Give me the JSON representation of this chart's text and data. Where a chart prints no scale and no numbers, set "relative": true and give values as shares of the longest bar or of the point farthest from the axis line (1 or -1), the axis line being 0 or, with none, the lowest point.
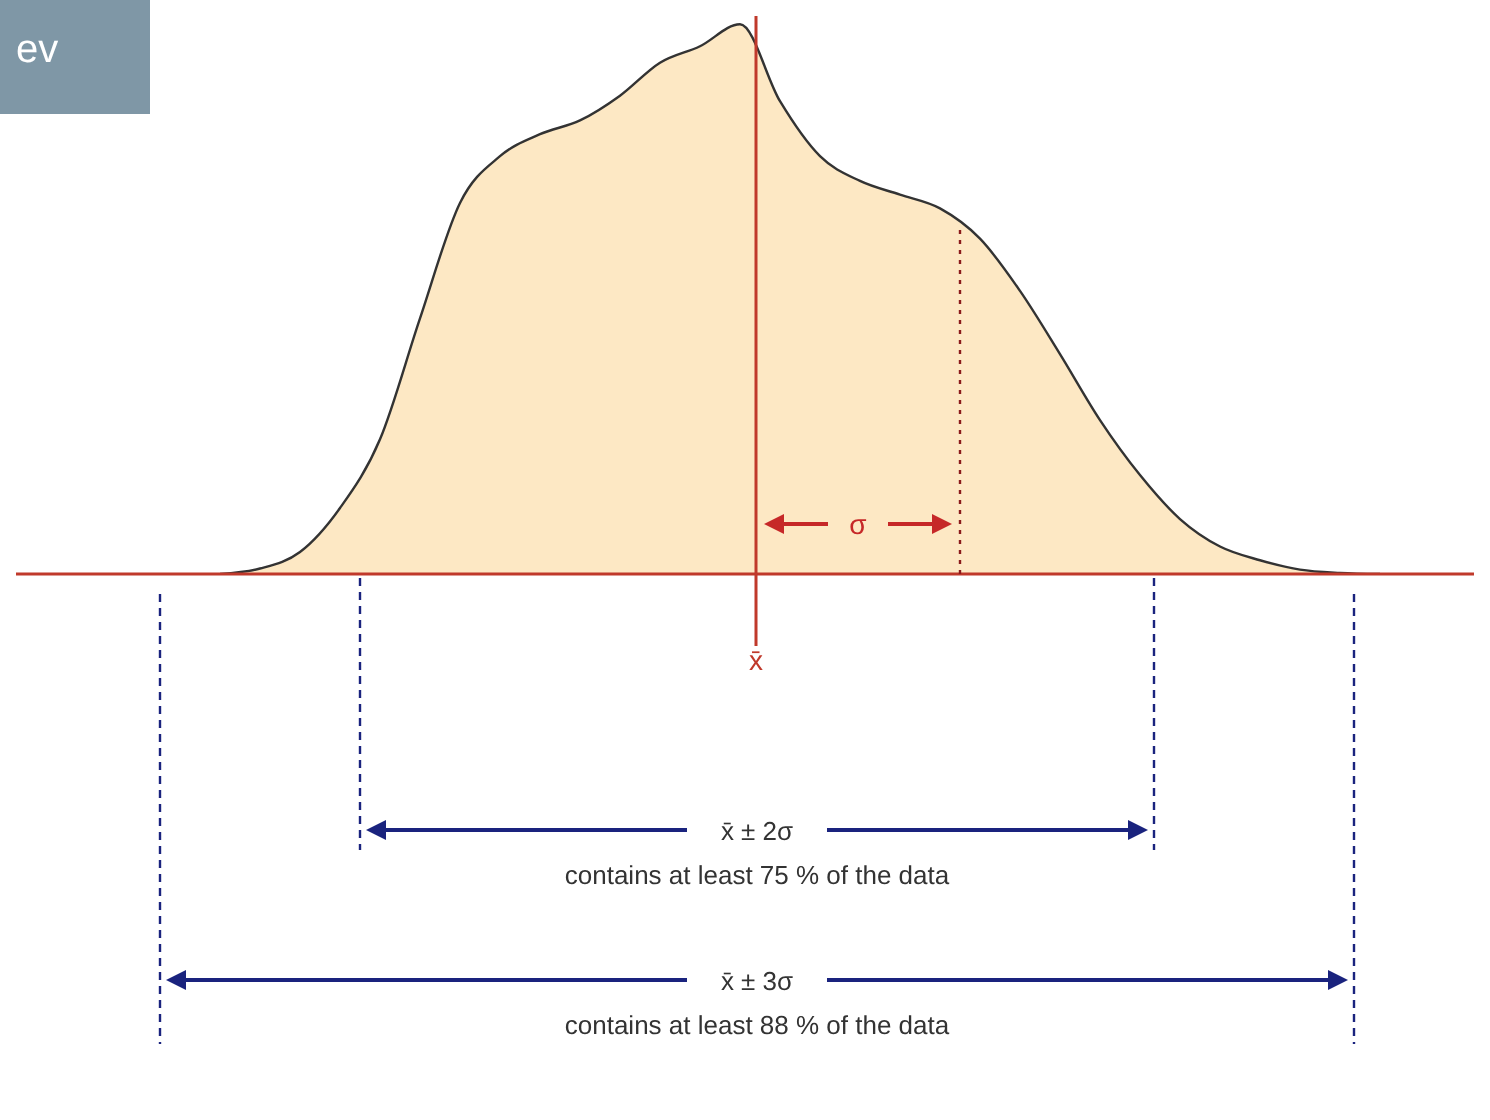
{
  "chart_data": {
    "type": "area",
    "relative": true,
    "categories": [
      null,
      null,
      null,
      null,
      null,
      null,
      null,
      null,
      null,
      null,
      null,
      null,
      null,
      null,
      null,
      null,
      null,
      null,
      null,
      null,
      null,
      null,
      null,
      null,
      null,
      null,
      null,
      null,
      null,
      null
    ],
    "series": [
      {
        "color": "#fde8c4",
        "values": [
          0,
          0.01,
          0.04,
          0.12,
          0.245,
          0.465,
          0.675,
          0.76,
          0.8,
          0.825,
          0.87,
          0.93,
          0.96,
          1,
          0.86,
          0.76,
          0.715,
          0.69,
          0.665,
          0.61,
          0.515,
          0.4,
          0.28,
          0.18,
          0.1,
          0.05,
          0.025,
          0.008,
          0.002,
          0
        ]
      }
    ],
    "annotations": [
      "ev",
      "x̄",
      "σ",
      "x̄ ± 2σ",
      "contains at least 75 % of the data",
      "x̄ ± 3σ",
      "contains at least 88 % of the data"
    ]
  }
}
